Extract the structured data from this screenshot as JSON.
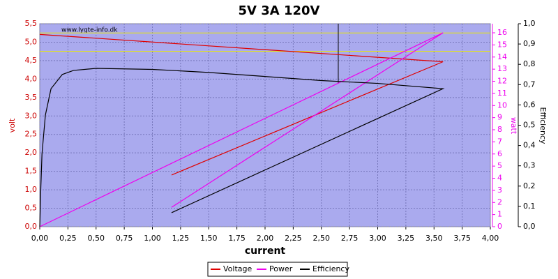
{
  "chart_data": {
    "type": "line",
    "title": "5V 3A 120V",
    "annotation": "www.lygte-info.dk",
    "xlabel": "current",
    "ylabel": "volt",
    "y2label": "watt",
    "y3label": "Efficiency",
    "xlim": [
      0,
      4
    ],
    "ylim": [
      0,
      5.5
    ],
    "y2lim": [
      0,
      16.75
    ],
    "y3lim": [
      0,
      1
    ],
    "xticks": [
      {
        "value": 0,
        "label": "0,00"
      },
      {
        "value": 0.25,
        "label": "0,25"
      },
      {
        "value": 0.5,
        "label": "0,50"
      },
      {
        "value": 0.75,
        "label": "0,75"
      },
      {
        "value": 1,
        "label": "1,00"
      },
      {
        "value": 1.25,
        "label": "1,25"
      },
      {
        "value": 1.5,
        "label": "1,50"
      },
      {
        "value": 1.75,
        "label": "1,75"
      },
      {
        "value": 2,
        "label": "2,00"
      },
      {
        "value": 2.25,
        "label": "2,25"
      },
      {
        "value": 2.5,
        "label": "2,50"
      },
      {
        "value": 2.75,
        "label": "2,75"
      },
      {
        "value": 3,
        "label": "3,00"
      },
      {
        "value": 3.25,
        "label": "3,25"
      },
      {
        "value": 3.5,
        "label": "3,50"
      },
      {
        "value": 3.75,
        "label": "3,75"
      },
      {
        "value": 4,
        "label": "4,00"
      }
    ],
    "yticks": [
      {
        "value": 0,
        "label": "0,0"
      },
      {
        "value": 0.5,
        "label": "0,5"
      },
      {
        "value": 1,
        "label": "1,0"
      },
      {
        "value": 1.5,
        "label": "1,5"
      },
      {
        "value": 2,
        "label": "2,0"
      },
      {
        "value": 2.5,
        "label": "2,5"
      },
      {
        "value": 3,
        "label": "3,0"
      },
      {
        "value": 3.5,
        "label": "3,5"
      },
      {
        "value": 4,
        "label": "4,0"
      },
      {
        "value": 4.5,
        "label": "4,5"
      },
      {
        "value": 5,
        "label": "5,0"
      },
      {
        "value": 5.5,
        "label": "5,5"
      }
    ],
    "y2ticks": [
      0,
      1,
      2,
      3,
      4,
      5,
      6,
      7,
      8,
      9,
      10,
      11,
      12,
      13,
      14,
      15,
      16
    ],
    "y3ticks": [
      {
        "value": 0,
        "label": "0,0"
      },
      {
        "value": 0.1,
        "label": "0,1"
      },
      {
        "value": 0.2,
        "label": "0,2"
      },
      {
        "value": 0.3,
        "label": "0,3"
      },
      {
        "value": 0.4,
        "label": "0,4"
      },
      {
        "value": 0.5,
        "label": "0,5"
      },
      {
        "value": 0.6,
        "label": "0,6"
      },
      {
        "value": 0.7,
        "label": "0,7"
      },
      {
        "value": 0.8,
        "label": "0,8"
      },
      {
        "value": 0.9,
        "label": "0,9"
      },
      {
        "value": 1,
        "label": "1,0"
      }
    ],
    "grid": true,
    "reference_lines": [
      {
        "value": 5.25,
        "color": "#e8e800"
      },
      {
        "value": 4.75,
        "color": "#e8e800"
      }
    ],
    "vline": {
      "x": 2.65,
      "from": 3.88,
      "color": "#000000"
    },
    "series": [
      {
        "name": "Voltage",
        "color": "#e00000",
        "x": [
          0,
          3.58,
          1.17
        ],
        "values": [
          5.21,
          4.47,
          1.4
        ]
      },
      {
        "name": "Power",
        "color": "#ee00ee",
        "axis": "y2",
        "x": [
          0,
          3.58,
          1.17
        ],
        "values": [
          0,
          16,
          1.6
        ]
      },
      {
        "name": "Efficiency",
        "color": "#000000",
        "axis": "y3",
        "x": [
          0,
          0.01,
          0.02,
          0.05,
          0.1,
          0.2,
          0.3,
          0.5,
          1,
          1.5,
          2,
          2.5,
          3,
          3.58,
          1.17
        ],
        "values": [
          0,
          0.2,
          0.36,
          0.55,
          0.68,
          0.75,
          0.77,
          0.78,
          0.775,
          0.76,
          0.74,
          0.72,
          0.706,
          0.68,
          0.069
        ]
      }
    ]
  }
}
